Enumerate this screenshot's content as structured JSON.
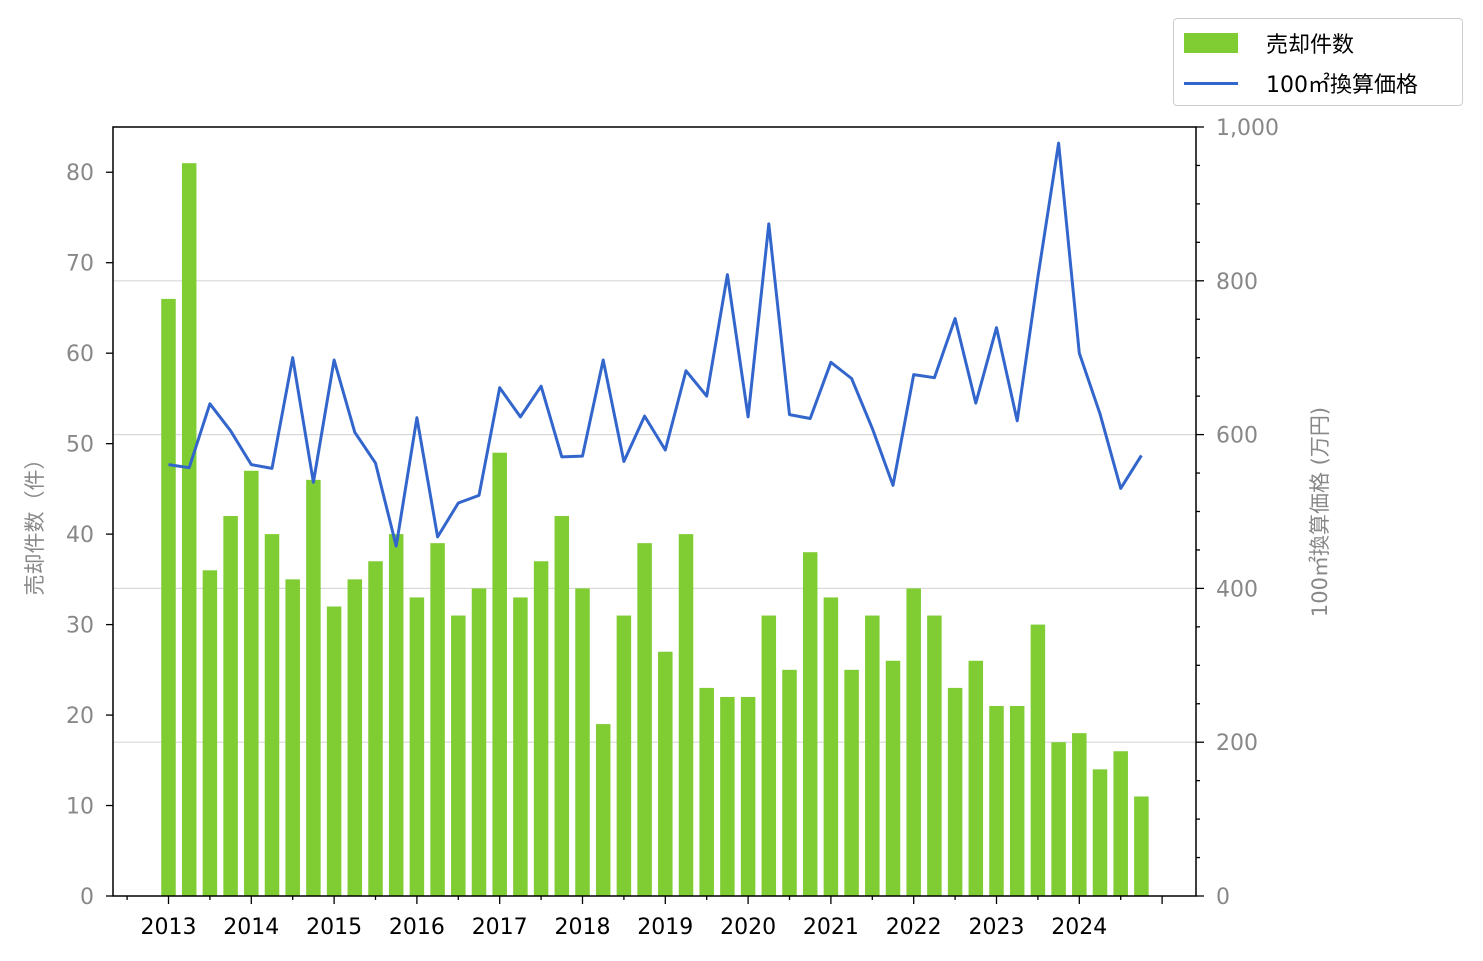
{
  "chart_data": {
    "type": "bar",
    "title": "",
    "xlabel": "",
    "ylabel": "売却件数（件）",
    "y2label": "100㎡換算価格 (万円)",
    "ylim": [
      0,
      85
    ],
    "y2lim": [
      0,
      1000
    ],
    "yticks": [
      0,
      10,
      20,
      30,
      40,
      50,
      60,
      70,
      80
    ],
    "y2ticks": [
      0,
      200,
      400,
      600,
      800,
      1000
    ],
    "y2tick_labels": [
      "0",
      "200",
      "400",
      "600",
      "800",
      "1,000"
    ],
    "x_tick_labels": [
      "2013",
      "2014",
      "2015",
      "2016",
      "2017",
      "2018",
      "2019",
      "2020",
      "2021",
      "2022",
      "2023",
      "2024"
    ],
    "grid": "horizontal (secondary axis)",
    "legend_position": "top-right, outside",
    "colors": {
      "bar": "#7fcc33",
      "line": "#3366cc",
      "axis_text": "#888888",
      "grid": "#d9d9d9"
    },
    "x": [
      "2013Q1",
      "2013Q2",
      "2013Q3",
      "2013Q4",
      "2014Q1",
      "2014Q2",
      "2014Q3",
      "2014Q4",
      "2015Q1",
      "2015Q2",
      "2015Q3",
      "2015Q4",
      "2016Q1",
      "2016Q2",
      "2016Q3",
      "2016Q4",
      "2017Q1",
      "2017Q2",
      "2017Q3",
      "2017Q4",
      "2018Q1",
      "2018Q2",
      "2018Q3",
      "2018Q4",
      "2019Q1",
      "2019Q2",
      "2019Q3",
      "2019Q4",
      "2020Q1",
      "2020Q2",
      "2020Q3",
      "2020Q4",
      "2021Q1",
      "2021Q2",
      "2021Q3",
      "2021Q4",
      "2022Q1",
      "2022Q2",
      "2022Q3",
      "2022Q4",
      "2023Q1",
      "2023Q2",
      "2023Q3",
      "2023Q4",
      "2024Q1",
      "2024Q2",
      "2024Q3",
      "2024Q4"
    ],
    "series": [
      {
        "name": "売却件数",
        "type": "bar",
        "axis": "left",
        "values": [
          66,
          81,
          36,
          42,
          47,
          40,
          35,
          46,
          32,
          35,
          37,
          40,
          33,
          39,
          31,
          34,
          49,
          33,
          37,
          42,
          34,
          19,
          31,
          39,
          27,
          40,
          23,
          22,
          22,
          31,
          25,
          38,
          33,
          25,
          31,
          26,
          34,
          31,
          23,
          26,
          21,
          21,
          30,
          17,
          18,
          14,
          16,
          11
        ]
      },
      {
        "name": "100㎡換算価格",
        "type": "line",
        "axis": "right",
        "values": [
          561,
          557,
          640,
          605,
          561,
          556,
          700,
          538,
          697,
          603,
          563,
          455,
          622,
          467,
          511,
          521,
          661,
          623,
          663,
          571,
          572,
          697,
          565,
          624,
          580,
          683,
          650,
          808,
          623,
          874,
          626,
          621,
          694,
          673,
          608,
          534,
          678,
          674,
          751,
          641,
          739,
          618,
          805,
          979,
          706,
          627,
          530,
          573
        ]
      }
    ]
  }
}
